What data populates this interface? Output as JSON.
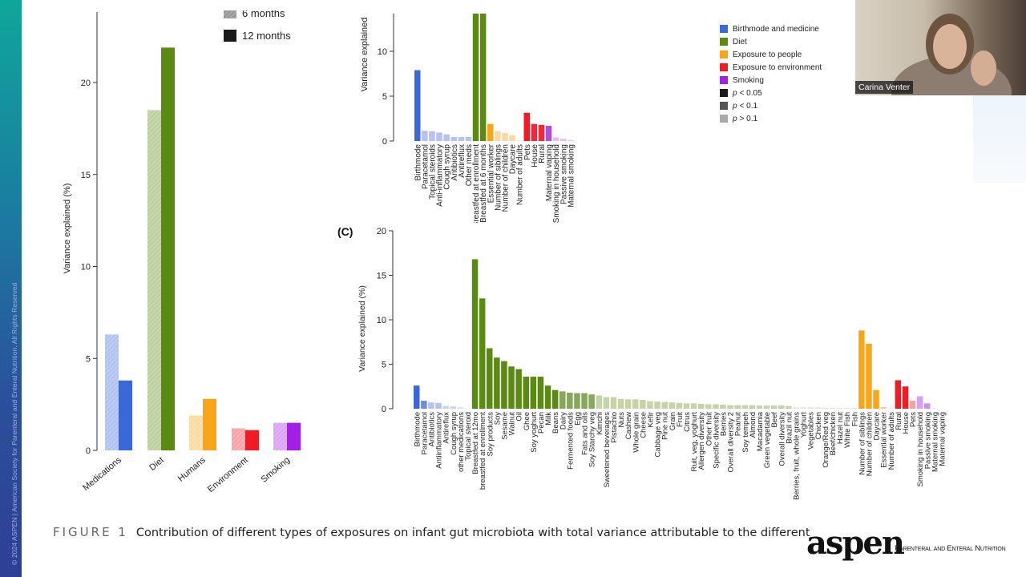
{
  "sidebar": {
    "copyright": "© 2024 ASPEN | American Society for Parenteral and Enteral Nutrition. All Rights Reserved"
  },
  "webcam": {
    "name": "Carina Venter"
  },
  "caption": {
    "figure_label": "FIGURE 1",
    "text": "Contribution of different types of exposures on infant gut microbiota with total variance attributable to the different"
  },
  "logo": {
    "wordmark": "aspen",
    "tagline": "Parenteral and Enteral Nutrition"
  },
  "panel_c_label": "(C)",
  "legend_b": [
    {
      "label": "Birthmode and medicine",
      "color": "#3b68d9"
    },
    {
      "label": "Diet",
      "color": "#5b8a12"
    },
    {
      "label": "Exposure to people",
      "color": "#f9a51a"
    },
    {
      "label": "Exposure to environment",
      "color": "#ee1c25"
    },
    {
      "label": "Smoking",
      "color": "#a21fe6"
    },
    {
      "label": "< 0.05",
      "p": "p",
      "color": "#1a1a1a"
    },
    {
      "label": "< 0.1",
      "p": "p",
      "color": "#555555"
    },
    {
      "label": "> 0.1",
      "p": "p",
      "color": "#aaaaaa"
    }
  ],
  "chart_data": [
    {
      "type": "bar",
      "ylabel": "Variance explained (%)",
      "ylim": [
        0,
        23.5
      ],
      "yticks": [
        0,
        5,
        10,
        15,
        20
      ],
      "categories": [
        "Medications",
        "Diet",
        "Humans",
        "Environment",
        "Smoking"
      ],
      "category_colors": [
        "#3b68d9",
        "#5b8a12",
        "#f9a51a",
        "#ee1c25",
        "#a21fe6"
      ],
      "series": [
        {
          "name": "6 months",
          "values": [
            6.3,
            18.5,
            1.9,
            1.2,
            1.5
          ],
          "style": "hatched-light"
        },
        {
          "name": "12 months",
          "values": [
            3.8,
            21.9,
            2.8,
            1.1,
            1.5
          ],
          "style": "solid"
        }
      ],
      "legend": "top-right"
    },
    {
      "type": "bar",
      "ylabel": "Variance explained",
      "ylim": [
        0,
        14.2
      ],
      "yticks": [
        0,
        5,
        10
      ],
      "categories": [
        "Birthmode",
        "Paracetamol",
        "Topical steroids",
        "Anti-inflammatory",
        "Cough syrup",
        "Antibiotics",
        "Antireflux",
        "Other meds",
        "Breastfed at enrollment",
        "Breastfed at 6 months",
        "Essential worker",
        "Number of siblings",
        "Number of children",
        "Daycare",
        "Number of adults",
        "Pets",
        "House",
        "Rural",
        "Maternal vaping",
        "Smoking in household",
        "Passive smoking",
        "Maternal smoking"
      ],
      "values": [
        7.9,
        1.15,
        1.1,
        0.95,
        0.75,
        0.45,
        0.45,
        0.45,
        14.2,
        14.2,
        1.9,
        1.1,
        0.9,
        0.65,
        0.1,
        3.15,
        1.9,
        1.8,
        1.7,
        0.4,
        0.25,
        0.1
      ],
      "colors": [
        "#3b68d9",
        "#b6c2ef",
        "#b6c2ef",
        "#b6c2ef",
        "#b6c2ef",
        "#b6c2ef",
        "#b6c2ef",
        "#b6c2ef",
        "#5b8a12",
        "#5b8a12",
        "#f9a51a",
        "#f9d9a3",
        "#f9d9a3",
        "#f9d9a3",
        "#fbe9c8",
        "#ee1c25",
        "#ee2a3a",
        "#ee2a3a",
        "#b24be3",
        "#e3bff4",
        "#e3bff4",
        "#e3bff4"
      ]
    },
    {
      "type": "bar",
      "ylabel": "Variance explained (%)",
      "ylim": [
        0,
        20
      ],
      "yticks": [
        0,
        5,
        10,
        15,
        20
      ],
      "categories": [
        "Birthmode",
        "Paracetamol",
        "Antibiotics",
        "Antiinflammatory",
        "Antireflux",
        "Cough syrup",
        "other medications",
        "Topical steroid",
        "Breastfed at 12mo",
        "breastfed at enrollment",
        "Soy products",
        "Soy",
        "Sesame",
        "Walnut",
        "Oil",
        "Ghee",
        "Soy yoghurt",
        "Pecan",
        "Milk",
        "Beans",
        "Dairy",
        "Fermented foods",
        "Egg",
        "Fats and oils",
        "Soy Starchy veg",
        "Kimchi",
        "Sweetened beverages",
        "Pistachio",
        "Nuts",
        "Cashew",
        "Whole grain",
        "Cheese",
        "Kefir",
        "Cabbage veg",
        "Pine nut",
        "Grain",
        "Fruit",
        "Citrus",
        "Ruit, veg, yoghurt",
        "Allergen diversity",
        "Other fruit",
        "Specific diversity",
        "Berries",
        "Overall diversity 2",
        "Peanut",
        "Soy tempeh",
        "Almond",
        "Macadamia",
        "Green vegetable",
        "Beef",
        "Overall diversity",
        "Brazil nut",
        "Berries, fruit, whole grains",
        "Yoghurt",
        "Vegetables",
        "Chicken",
        "Orange/Red veg",
        "Beef/chicken",
        "Hazel nut",
        "White Fish",
        "Fish",
        "Number of siblings",
        "Number of children",
        "Daycare",
        "Essential worker",
        "Number of adults",
        "Rural",
        "House",
        "Pets",
        "Smoking in household",
        "Passive smoking",
        "Maternal smoking",
        "Maternal vaping"
      ],
      "values": [
        2.6,
        0.9,
        0.7,
        0.65,
        0.3,
        0.25,
        0.15,
        0.05,
        16.8,
        12.4,
        6.8,
        5.75,
        5.35,
        4.75,
        4.45,
        3.6,
        3.6,
        3.6,
        2.6,
        2.1,
        1.95,
        1.8,
        1.75,
        1.75,
        1.6,
        1.5,
        1.3,
        1.3,
        1.1,
        1.05,
        1.05,
        1.0,
        0.85,
        0.8,
        0.75,
        0.7,
        0.65,
        0.6,
        0.6,
        0.55,
        0.5,
        0.5,
        0.45,
        0.4,
        0.4,
        0.4,
        0.4,
        0.35,
        0.35,
        0.35,
        0.35,
        0.3,
        0.15,
        0.15,
        0.15,
        0.15,
        0.12,
        0.12,
        0.1,
        0.1,
        0.1,
        8.8,
        7.3,
        2.1,
        0.2,
        0.05,
        3.2,
        2.5,
        0.9,
        1.4,
        0.6,
        0.1,
        0.02
      ],
      "colors": [
        "#3b68d9",
        "#6e8de0",
        "#b6c2ef",
        "#b6c2ef",
        "#c7d1f3",
        "#c7d1f3",
        "#d5ddf6",
        "#e3e8f8",
        "#5b8a12",
        "#5b8a12",
        "#5b8a12",
        "#5b8a12",
        "#5b8a12",
        "#5b8a12",
        "#5b8a12",
        "#5b8a12",
        "#5b8a12",
        "#5b8a12",
        "#5b8a12",
        "#5b8a12",
        "#86a85a",
        "#86a85a",
        "#86a85a",
        "#86a85a",
        "#86a85a",
        "#c5d4a6",
        "#c5d4a6",
        "#c5d4a6",
        "#c5d4a6",
        "#c5d4a6",
        "#c5d4a6",
        "#c5d4a6",
        "#c5d4a6",
        "#c5d4a6",
        "#c5d4a6",
        "#c5d4a6",
        "#c5d4a6",
        "#c5d4a6",
        "#c5d4a6",
        "#c5d4a6",
        "#c5d4a6",
        "#c5d4a6",
        "#c5d4a6",
        "#c5d4a6",
        "#c5d4a6",
        "#c5d4a6",
        "#c5d4a6",
        "#c5d4a6",
        "#c5d4a6",
        "#c5d4a6",
        "#c5d4a6",
        "#c5d4a6",
        "#e0e8d0",
        "#e0e8d0",
        "#e0e8d0",
        "#e0e8d0",
        "#e0e8d0",
        "#e0e8d0",
        "#e0e8d0",
        "#e0e8d0",
        "#e0e8d0",
        "#f9a51a",
        "#f9a51a",
        "#f9a51a",
        "#fbc9a0",
        "#fde8d0",
        "#ee1c25",
        "#ee1c25",
        "#f5a0a4",
        "#d9a0f0",
        "#cf8ff0",
        "#eeeeee",
        "#f3f3f3"
      ]
    }
  ]
}
